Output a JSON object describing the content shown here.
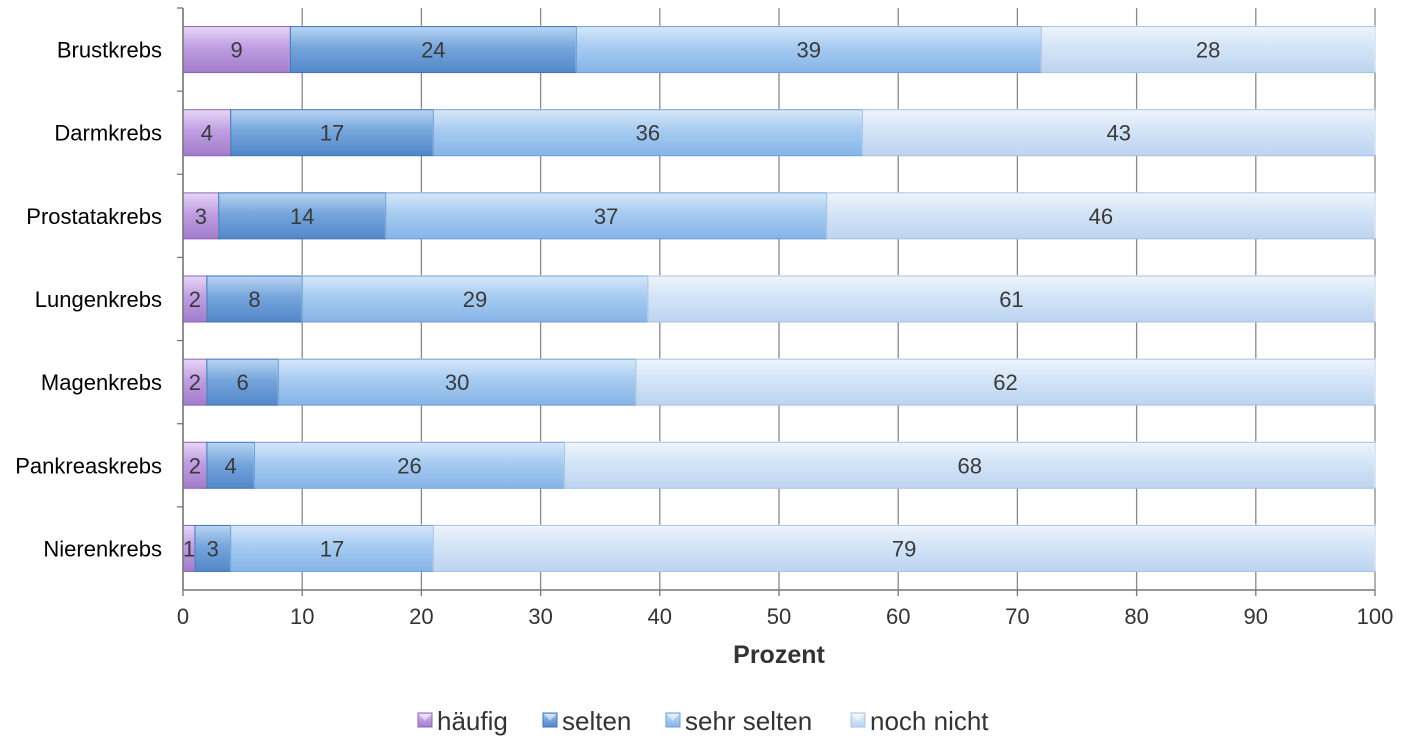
{
  "chart_data": {
    "type": "bar",
    "orientation": "horizontal",
    "stacked": true,
    "categories": [
      "Brustkrebs",
      "Darmkrebs",
      "Prostatakrebs",
      "Lungenkrebs",
      "Magenkrebs",
      "Pankreaskrebs",
      "Nierenkrebs"
    ],
    "series": [
      {
        "name": "häufig",
        "color": "#b894dc",
        "values": [
          9,
          4,
          3,
          2,
          2,
          2,
          1
        ]
      },
      {
        "name": "selten",
        "color": "#6e9fd8",
        "values": [
          24,
          17,
          14,
          8,
          6,
          4,
          3
        ]
      },
      {
        "name": "sehr selten",
        "color": "#9cc3ee",
        "values": [
          39,
          36,
          37,
          29,
          30,
          26,
          17
        ]
      },
      {
        "name": "noch nicht",
        "color": "#cde0f6",
        "values": [
          28,
          43,
          46,
          61,
          62,
          68,
          79
        ]
      }
    ],
    "xlabel": "Prozent",
    "ylabel": "",
    "xlim": [
      0,
      100
    ],
    "xticks": [
      0,
      10,
      20,
      30,
      40,
      50,
      60,
      70,
      80,
      90,
      100
    ],
    "grid": "vertical",
    "legend": "bottom"
  }
}
